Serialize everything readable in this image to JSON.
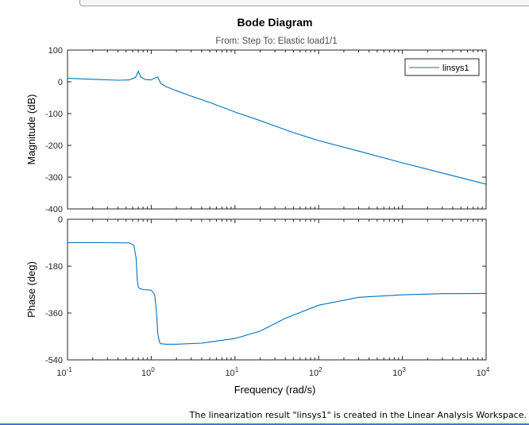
{
  "status": {
    "message": "The linearization result \"linsys1\" is created in the Linear Analysis Workspace."
  },
  "chart_data": {
    "type": "line",
    "title": "Bode Diagram",
    "subtitle": "From: Step  To: Elastic load1/1",
    "xlabel": "Frequency  (rad/s)",
    "xscale": "log",
    "xlim": [
      0.1,
      10000
    ],
    "x_tick_labels": [
      {
        "base": "10",
        "exp": "-1"
      },
      {
        "base": "10",
        "exp": "0"
      },
      {
        "base": "10",
        "exp": "1"
      },
      {
        "base": "10",
        "exp": "2"
      },
      {
        "base": "10",
        "exp": "3"
      },
      {
        "base": "10",
        "exp": "4"
      }
    ],
    "legend": {
      "entries": [
        "linsys1"
      ],
      "location": "top-right"
    },
    "line_color": "#0072bd",
    "grid": false,
    "panels": [
      {
        "name": "magnitude",
        "ylabel": "Magnitude (dB)",
        "ylim": [
          -400,
          100
        ],
        "yticks": [
          "100",
          "0",
          "-100",
          "-200",
          "-300",
          "-400"
        ],
        "series": [
          {
            "name": "linsys1",
            "x": [
              0.1,
              0.2,
              0.4,
              0.55,
              0.65,
              0.7,
              0.75,
              0.85,
              1.0,
              1.1,
              1.2,
              1.3,
              1.5,
              2,
              3,
              5,
              10,
              20,
              50,
              100,
              300,
              1000,
              3000,
              10000
            ],
            "y": [
              11,
              8,
              5,
              6,
              14,
              33,
              15,
              7,
              6,
              12,
              15,
              -5,
              -15,
              -28,
              -45,
              -65,
              -95,
              -122,
              -160,
              -185,
              -218,
              -255,
              -287,
              -322
            ]
          }
        ]
      },
      {
        "name": "phase",
        "ylabel": "Phase (deg)",
        "ylim": [
          -540,
          0
        ],
        "yticks": [
          "0",
          "-180",
          "-360",
          "-540"
        ],
        "series": [
          {
            "name": "linsys1",
            "x": [
              0.1,
              0.3,
              0.55,
              0.62,
              0.66,
              0.68,
              0.7,
              0.72,
              0.8,
              1.0,
              1.1,
              1.15,
              1.2,
              1.25,
              1.3,
              1.5,
              2,
              4,
              10,
              20,
              40,
              100,
              300,
              1000,
              3000,
              10000
            ],
            "y": [
              -90,
              -90,
              -91,
              -100,
              -150,
              -230,
              -260,
              -265,
              -270,
              -272,
              -290,
              -350,
              -440,
              -470,
              -478,
              -480,
              -480,
              -476,
              -458,
              -430,
              -380,
              -330,
              -300,
              -290,
              -286,
              -285
            ]
          }
        ]
      }
    ]
  }
}
